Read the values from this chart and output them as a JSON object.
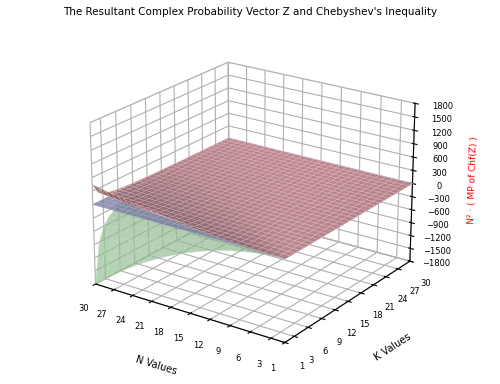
{
  "title": "The Resultant Complex Probability Vector Z and Chebyshev's Inequality",
  "xlabel": "N Values",
  "ylabel": "K Values",
  "zlabel": "N² · ( MP of Chf(Z) )",
  "n_min": 1,
  "n_max": 30,
  "k_min": 1,
  "k_max": 30,
  "zlim": [
    -1800,
    1800
  ],
  "zticks": [
    -1800,
    -1500,
    -1200,
    -900,
    -600,
    -300,
    0,
    300,
    600,
    900,
    1200,
    1500,
    1800
  ],
  "n_ticks": [
    30,
    27,
    24,
    21,
    18,
    15,
    12,
    9,
    6,
    3,
    1
  ],
  "k_ticks": [
    1,
    3,
    6,
    9,
    12,
    15,
    18,
    21,
    24,
    27,
    30
  ],
  "surface_mid_color": "#9999cc",
  "surface_upper_color": "#ffaaaa",
  "surface_lower_color": "#aaddaa",
  "surface_mid_alpha": 0.75,
  "surface_upper_alpha": 0.65,
  "surface_lower_alpha": 0.65,
  "grid_color_mid": "#aaaacc",
  "grid_color_upper": "#ffbbbb",
  "grid_color_lower": "#bbddbb",
  "figsize": [
    5.0,
    3.84
  ],
  "dpi": 100,
  "elev": 22,
  "azim": -55
}
